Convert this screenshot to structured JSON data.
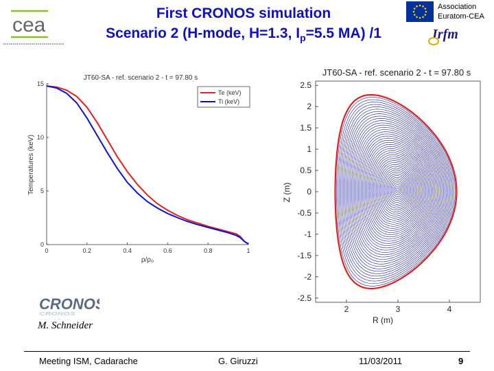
{
  "header": {
    "title_line1": "First CRONOS simulation",
    "title_line2_a": "Scenario 2 (H-mode, H=1.3, I",
    "title_line2_sub": "p",
    "title_line2_b": "=5.5 MA) /1",
    "association_line1": "Association",
    "association_line2": "Euratom-CEA",
    "cea_logo_text": "cea",
    "irfm_logo_text": "Irfm"
  },
  "chart_data": [
    {
      "type": "line",
      "title": "JT60-SA - ref. scenario 2 - t = 97.80 s",
      "xlabel": "ρ/ρ₀",
      "ylabel": "Temperatures (keV)",
      "xlim": [
        0,
        1
      ],
      "ylim": [
        0,
        15
      ],
      "xticks": [
        "0",
        "0.2",
        "0.4",
        "0.6",
        "0.8",
        "1"
      ],
      "yticks": [
        "0",
        "5",
        "10",
        "15"
      ],
      "legend_position": "top-right",
      "series": [
        {
          "name": "Te (keV)",
          "color": "#e02020",
          "x": [
            0,
            0.05,
            0.1,
            0.15,
            0.2,
            0.25,
            0.3,
            0.35,
            0.4,
            0.45,
            0.5,
            0.55,
            0.6,
            0.65,
            0.7,
            0.75,
            0.8,
            0.85,
            0.9,
            0.94,
            0.96,
            0.98,
            1.0
          ],
          "y": [
            14.8,
            14.7,
            14.4,
            13.8,
            12.8,
            11.4,
            9.8,
            8.2,
            6.8,
            5.6,
            4.6,
            3.8,
            3.2,
            2.7,
            2.3,
            2.0,
            1.7,
            1.45,
            1.2,
            1.0,
            0.75,
            0.3,
            0.05
          ]
        },
        {
          "name": "Ti (keV)",
          "color": "#1010d0",
          "x": [
            0,
            0.05,
            0.1,
            0.15,
            0.2,
            0.25,
            0.3,
            0.35,
            0.4,
            0.45,
            0.5,
            0.55,
            0.6,
            0.65,
            0.7,
            0.75,
            0.8,
            0.85,
            0.9,
            0.94,
            0.96,
            0.98,
            1.0
          ],
          "y": [
            14.8,
            14.6,
            14.1,
            13.2,
            11.8,
            10.2,
            8.6,
            7.1,
            5.8,
            4.8,
            4.0,
            3.4,
            2.9,
            2.5,
            2.15,
            1.85,
            1.6,
            1.35,
            1.1,
            0.85,
            0.65,
            0.3,
            0.05
          ]
        }
      ]
    },
    {
      "type": "line",
      "title": "JT60-SA - ref. scenario 2 - t = 97.80 s",
      "xlabel": "R (m)",
      "ylabel": "Z (m)",
      "xlim": [
        1.4,
        4.6
      ],
      "ylim": [
        -2.6,
        2.6
      ],
      "xticks": [
        "2",
        "3",
        "4"
      ],
      "yticks": [
        "-2.5",
        "-2",
        "-1.5",
        "-1",
        "-0.5",
        "0",
        "0.5",
        "1",
        "1.5",
        "2",
        "2.5"
      ],
      "plasma_boundary": {
        "color": "#e02020",
        "R0": 2.96,
        "minor_radius": 1.18,
        "elongation": 1.93,
        "triangularity": 0.42
      },
      "flux_surfaces": {
        "color": "#1a1a90",
        "count": 45,
        "magnetic_axis": [
          3.0,
          0.05
        ]
      }
    }
  ],
  "author_sign": "M. Schneider",
  "cronos_logo_text": "CRONOS",
  "footer": {
    "meeting": "Meeting ISM, Cadarache",
    "author": "G. Giruzzi",
    "date": "11/03/2011",
    "page": "9"
  }
}
